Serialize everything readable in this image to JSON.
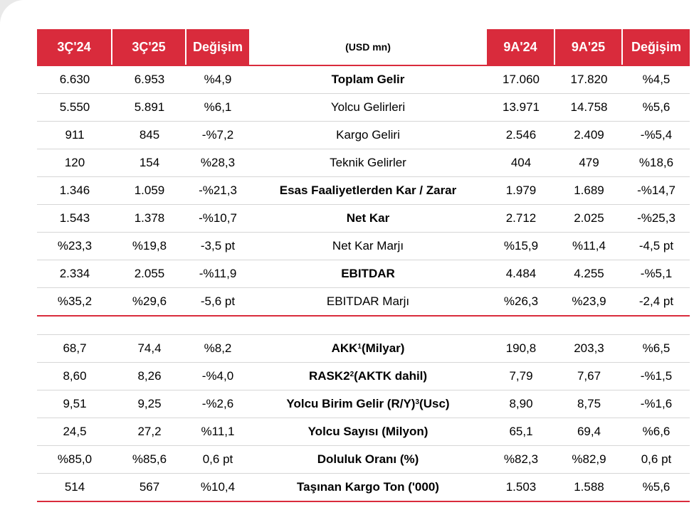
{
  "header": {
    "col1": "3Ç'24",
    "col2": "3Ç'25",
    "col3": "Değişim",
    "unit": "(USD mn)",
    "col5": "9A'24",
    "col6": "9A'25",
    "col7": "Değişim"
  },
  "section1": [
    {
      "q24": "6.630",
      "q25": "6.953",
      "qchg": "%4,9",
      "label": "Toplam Gelir",
      "bold": true,
      "n24": "17.060",
      "n25": "17.820",
      "nchg": "%4,5"
    },
    {
      "q24": "5.550",
      "q25": "5.891",
      "qchg": "%6,1",
      "label": "Yolcu Gelirleri",
      "bold": false,
      "n24": "13.971",
      "n25": "14.758",
      "nchg": "%5,6"
    },
    {
      "q24": "911",
      "q25": "845",
      "qchg": "-%7,2",
      "label": "Kargo Geliri",
      "bold": false,
      "n24": "2.546",
      "n25": "2.409",
      "nchg": "-%5,4"
    },
    {
      "q24": "120",
      "q25": "154",
      "qchg": "%28,3",
      "label": "Teknik Gelirler",
      "bold": false,
      "n24": "404",
      "n25": "479",
      "nchg": "%18,6"
    },
    {
      "q24": "1.346",
      "q25": "1.059",
      "qchg": "-%21,3",
      "label": "Esas Faaliyetlerden Kar / Zarar",
      "bold": true,
      "n24": "1.979",
      "n25": "1.689",
      "nchg": "-%14,7"
    },
    {
      "q24": "1.543",
      "q25": "1.378",
      "qchg": "-%10,7",
      "label": "Net Kar",
      "bold": true,
      "n24": "2.712",
      "n25": "2.025",
      "nchg": "-%25,3"
    },
    {
      "q24": "%23,3",
      "q25": "%19,8",
      "qchg": "-3,5 pt",
      "label": "Net Kar Marjı",
      "bold": false,
      "n24": "%15,9",
      "n25": "%11,4",
      "nchg": "-4,5 pt"
    },
    {
      "q24": "2.334",
      "q25": "2.055",
      "qchg": "-%11,9",
      "label": "EBITDAR",
      "bold": true,
      "n24": "4.484",
      "n25": "4.255",
      "nchg": "-%5,1"
    },
    {
      "q24": "%35,2",
      "q25": "%29,6",
      "qchg": "-5,6 pt",
      "label": "EBITDAR Marjı",
      "bold": false,
      "n24": "%26,3",
      "n25": "%23,9",
      "nchg": "-2,4 pt"
    }
  ],
  "section2": [
    {
      "q24": "68,7",
      "q25": "74,4",
      "qchg": "%8,2",
      "label": "AKK",
      "sup": "1",
      "label_rest": "(Milyar)",
      "n24": "190,8",
      "n25": "203,3",
      "nchg": "%6,5"
    },
    {
      "q24": "8,60",
      "q25": "8,26",
      "qchg": "-%4,0",
      "label": "RASK2",
      "sup": "2",
      "label_rest": " (AKTK dahil)",
      "n24": "7,79",
      "n25": "7,67",
      "nchg": "-%1,5"
    },
    {
      "q24": "9,51",
      "q25": "9,25",
      "qchg": "-%2,6",
      "label": "Yolcu Birim Gelir (R/Y)",
      "sup": "3",
      "label_rest": " (Usc)",
      "n24": "8,90",
      "n25": "8,75",
      "nchg": "-%1,6"
    },
    {
      "q24": "24,5",
      "q25": "27,2",
      "qchg": "%11,1",
      "label": "Yolcu Sayısı (Milyon)",
      "sup": "",
      "label_rest": "",
      "n24": "65,1",
      "n25": "69,4",
      "nchg": "%6,6"
    },
    {
      "q24": "%85,0",
      "q25": "%85,6",
      "qchg": "0,6 pt",
      "label": "Doluluk Oranı (%)",
      "sup": "",
      "label_rest": "",
      "n24": "%82,3",
      "n25": "%82,9",
      "nchg": "0,6 pt"
    },
    {
      "q24": "514",
      "q25": "567",
      "qchg": "%10,4",
      "label": "Taşınan Kargo Ton ('000)",
      "sup": "",
      "label_rest": "",
      "n24": "1.503",
      "n25": "1.588",
      "nchg": "%5,6"
    }
  ],
  "colors": {
    "accent": "#d92b3c",
    "divider": "#d6d6d6",
    "background": "#e9e9e9"
  }
}
